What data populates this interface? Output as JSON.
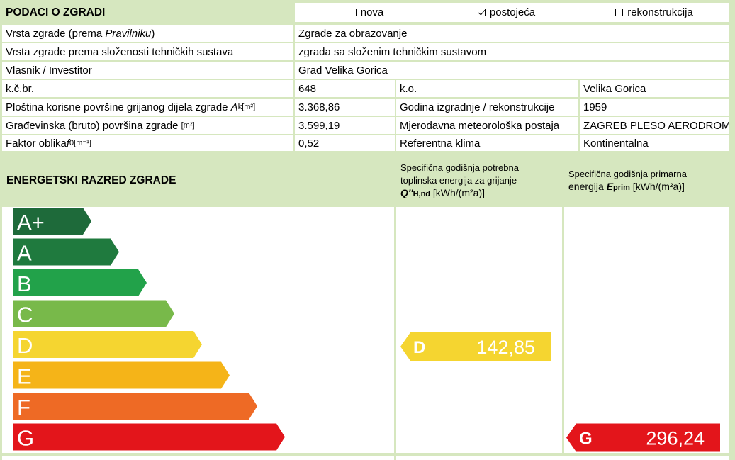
{
  "header": {
    "title": "PODACI O ZGRADI",
    "options": [
      {
        "label": "nova",
        "checked": false
      },
      {
        "label": "postojeća",
        "checked": true
      },
      {
        "label": "rekonstrukcija",
        "checked": false
      }
    ]
  },
  "rows": {
    "vrsta_label_a": "Vrsta zgrade (prema ",
    "vrsta_label_b": "Pravilniku",
    "vrsta_label_c": ")",
    "vrsta_value": "Zgrade za obrazovanje",
    "slozenost_label": "Vrsta zgrade prema složenosti tehničkih sustava",
    "slozenost_value": "zgrada sa složenim tehničkim sustavom",
    "vlasnik_label": "Vlasnik / Investitor",
    "vlasnik_value": "Grad Velika Gorica",
    "kcbr_label": "k.č.br.",
    "kcbr_value": "648",
    "ko_label": "k.o.",
    "ko_value": "Velika Gorica",
    "povrsina_label": "Ploština korisne površine grijanog dijela zgrade ",
    "povrsina_symbol": "A",
    "povrsina_sub": "k",
    "povrsina_unit": " [m²]",
    "povrsina_value": "3.368,86",
    "godina_label": "Godina izgradnje / rekonstrukcije",
    "godina_value": "1959",
    "bruto_label": "Građevinska (bruto) površina zgrade ",
    "bruto_unit": "[m²]",
    "bruto_value": "3.599,19",
    "postaja_label": "Mjerodavna meteorološka postaja",
    "postaja_value": "ZAGREB PLESO AERODROM",
    "faktor_label": "Faktor oblika ",
    "faktor_symbol": "f",
    "faktor_sub": "0",
    "faktor_unit": " [m⁻¹]",
    "faktor_value": "0,52",
    "klima_label": "Referentna klima",
    "klima_value": "Kontinentalna"
  },
  "energy": {
    "title": "ENERGETSKI RAZRED ZGRADE",
    "col1_line1": "Specifična godišnja potrebna",
    "col1_line2": "toplinska energija za grijanje",
    "col1_symbol": "Q''",
    "col1_sub": "H,nd",
    "col1_unit": " [kWh/(m²a)]",
    "col2_line1": "Specifična godišnja primarna",
    "col2_line2": "energija ",
    "col2_symbol": "E",
    "col2_sub": "prim",
    "col2_unit": " [kWh/(m²a)]",
    "classes": [
      {
        "label": "A+",
        "color": "#1e6a3a"
      },
      {
        "label": "A",
        "color": "#1f7a3e"
      },
      {
        "label": "B",
        "color": "#22a24a"
      },
      {
        "label": "C",
        "color": "#78b94a"
      },
      {
        "label": "D",
        "color": "#f5d530"
      },
      {
        "label": "E",
        "color": "#f5b418"
      },
      {
        "label": "F",
        "color": "#ee6a25"
      },
      {
        "label": "G",
        "color": "#e3151b"
      }
    ],
    "heating": {
      "class": "D",
      "value": "142,85",
      "color": "#f5d530"
    },
    "primary": {
      "class": "G",
      "value": "296,24",
      "color": "#e3151b"
    }
  }
}
